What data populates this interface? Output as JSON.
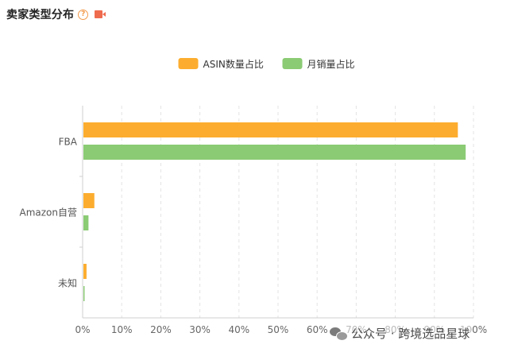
{
  "header": {
    "title": "卖家类型分布",
    "help_icon": "question-circle-icon",
    "video_icon": "video-camera-icon"
  },
  "watermark": {
    "icon": "wechat-icon",
    "text": "公众号 · 跨境选品星球"
  },
  "chart_data": {
    "type": "bar",
    "orientation": "horizontal",
    "categories": [
      "FBA",
      "Amazon自营",
      "未知"
    ],
    "series": [
      {
        "name": "ASIN数量占比",
        "color": "#fcad2f",
        "values": [
          96,
          3,
          1
        ]
      },
      {
        "name": "月销量占比",
        "color": "#8bcb74",
        "values": [
          98,
          1.5,
          0.5
        ]
      }
    ],
    "xlim": [
      0,
      100
    ],
    "x_ticks": [
      "0%",
      "10%",
      "20%",
      "30%",
      "40%",
      "50%",
      "60%",
      "70%",
      "80%",
      "90%",
      "100%"
    ],
    "grid": true,
    "legend_position": "top-center"
  }
}
